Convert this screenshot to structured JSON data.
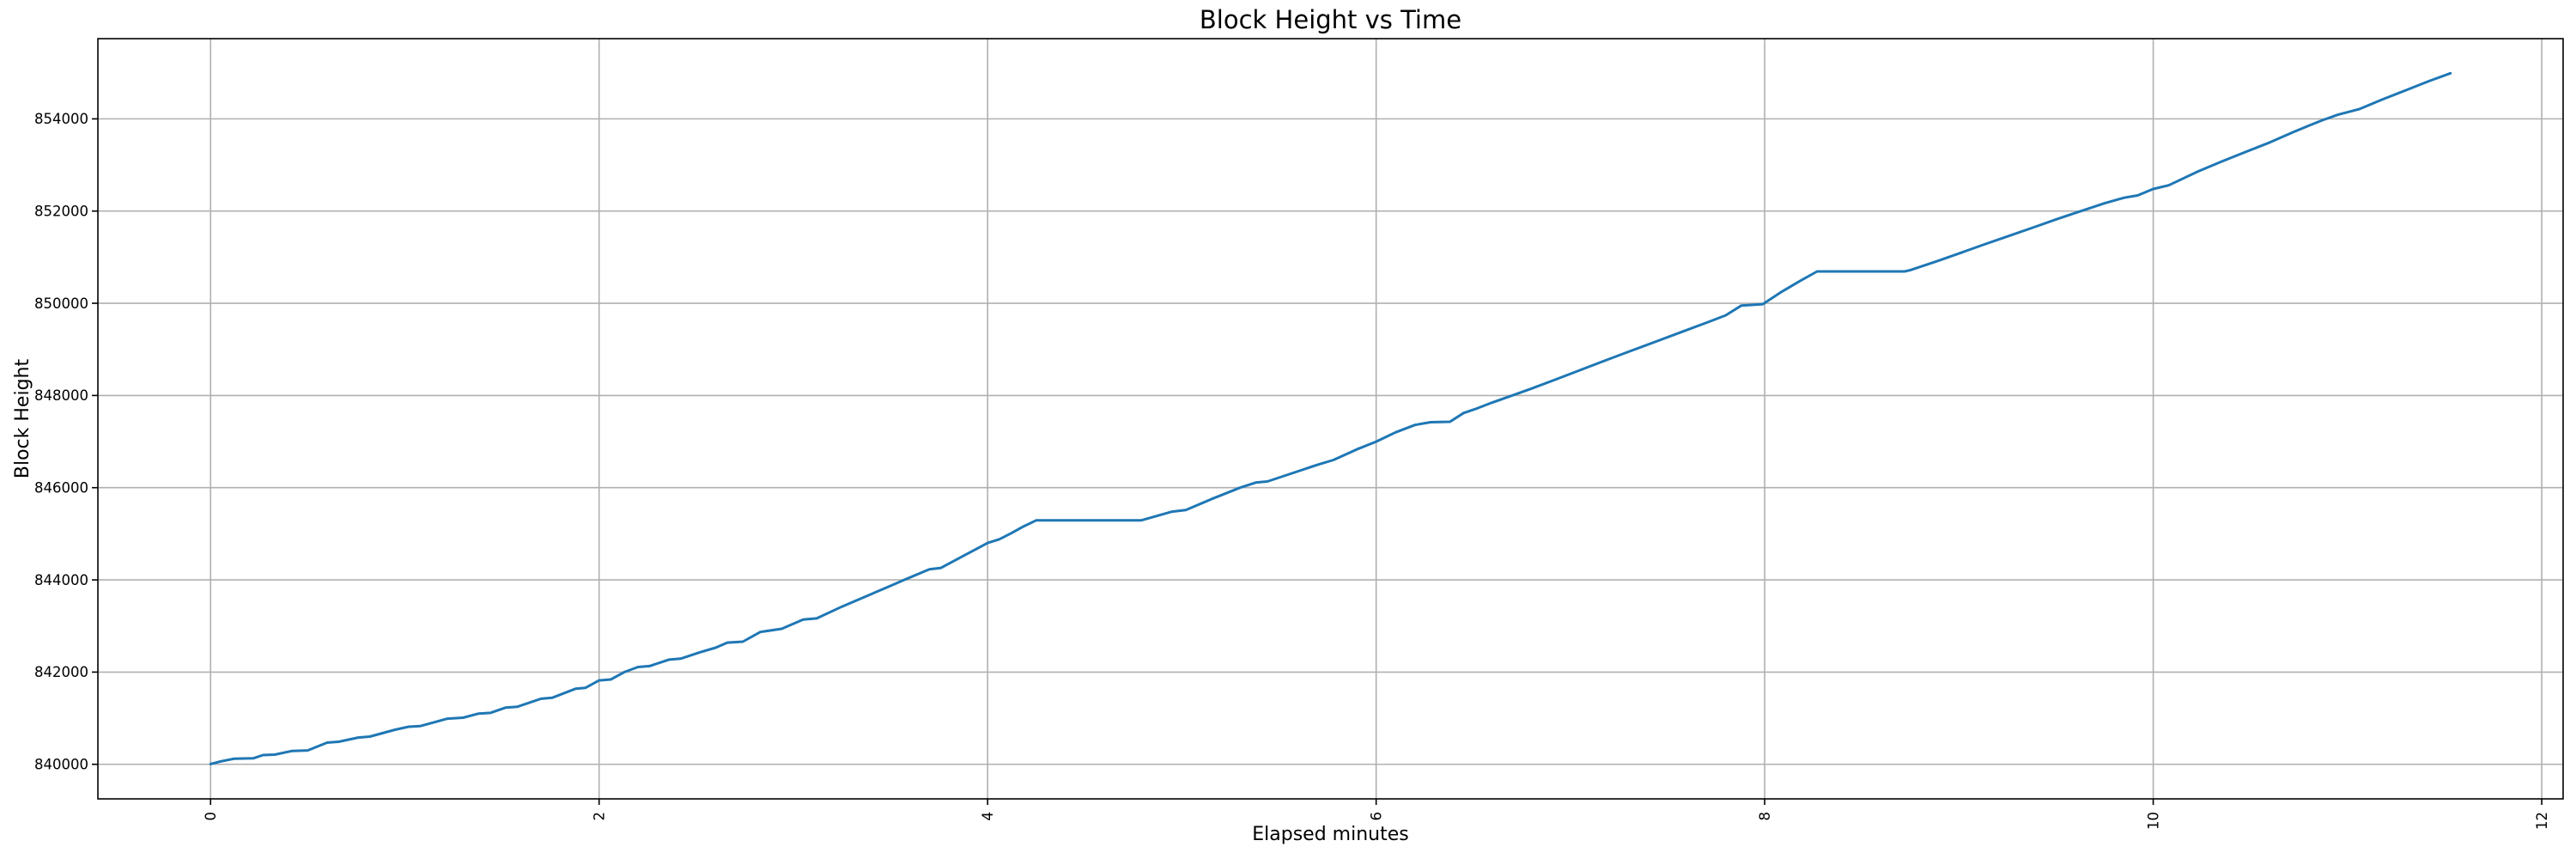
{
  "chart_data": {
    "type": "line",
    "title": "Block Height vs Time",
    "xlabel": "Elapsed minutes",
    "ylabel": "Block Height",
    "x_ticks": [
      0,
      2,
      4,
      6,
      8,
      10,
      12
    ],
    "y_ticks": [
      840000,
      842000,
      844000,
      846000,
      848000,
      850000,
      852000,
      854000
    ],
    "xlim": [
      -0.58,
      12.11
    ],
    "ylim": [
      839250,
      855740
    ],
    "grid": true,
    "legend_position": "none",
    "x_tick_rotation_deg": 90,
    "colors": {
      "line": "#1f77b4",
      "grid": "#b0b0b0",
      "spine": "#000000",
      "text": "#000000",
      "background": "#ffffff"
    },
    "series": [
      {
        "name": "Block Height",
        "points": [
          [
            0.0,
            840005
          ],
          [
            0.05,
            840060
          ],
          [
            0.12,
            840120
          ],
          [
            0.22,
            840130
          ],
          [
            0.27,
            840200
          ],
          [
            0.33,
            840210
          ],
          [
            0.42,
            840290
          ],
          [
            0.5,
            840300
          ],
          [
            0.6,
            840470
          ],
          [
            0.66,
            840490
          ],
          [
            0.76,
            840580
          ],
          [
            0.82,
            840600
          ],
          [
            0.95,
            840750
          ],
          [
            1.02,
            840815
          ],
          [
            1.08,
            840830
          ],
          [
            1.22,
            840990
          ],
          [
            1.3,
            841010
          ],
          [
            1.38,
            841100
          ],
          [
            1.44,
            841115
          ],
          [
            1.52,
            841230
          ],
          [
            1.58,
            841250
          ],
          [
            1.7,
            841420
          ],
          [
            1.76,
            841445
          ],
          [
            1.88,
            841640
          ],
          [
            1.93,
            841660
          ],
          [
            2.0,
            841820
          ],
          [
            2.06,
            841840
          ],
          [
            2.13,
            842000
          ],
          [
            2.2,
            842110
          ],
          [
            2.26,
            842130
          ],
          [
            2.36,
            842270
          ],
          [
            2.42,
            842290
          ],
          [
            2.52,
            842430
          ],
          [
            2.6,
            842530
          ],
          [
            2.66,
            842640
          ],
          [
            2.74,
            842660
          ],
          [
            2.83,
            842870
          ],
          [
            2.94,
            842940
          ],
          [
            3.05,
            843140
          ],
          [
            3.12,
            843165
          ],
          [
            3.25,
            843420
          ],
          [
            3.4,
            843690
          ],
          [
            3.5,
            843870
          ],
          [
            3.57,
            844000
          ],
          [
            3.7,
            844230
          ],
          [
            3.76,
            844260
          ],
          [
            3.88,
            844530
          ],
          [
            4.0,
            844800
          ],
          [
            4.06,
            844880
          ],
          [
            4.12,
            845010
          ],
          [
            4.18,
            845150
          ],
          [
            4.25,
            845290
          ],
          [
            4.79,
            845290
          ],
          [
            4.95,
            845480
          ],
          [
            5.02,
            845515
          ],
          [
            5.15,
            845750
          ],
          [
            5.3,
            846000
          ],
          [
            5.38,
            846110
          ],
          [
            5.44,
            846135
          ],
          [
            5.58,
            846330
          ],
          [
            5.7,
            846500
          ],
          [
            5.78,
            846600
          ],
          [
            5.9,
            846830
          ],
          [
            6.0,
            847000
          ],
          [
            6.1,
            847200
          ],
          [
            6.2,
            847360
          ],
          [
            6.28,
            847420
          ],
          [
            6.38,
            847430
          ],
          [
            6.45,
            847620
          ],
          [
            6.52,
            847720
          ],
          [
            6.6,
            847850
          ],
          [
            6.72,
            848030
          ],
          [
            6.8,
            848150
          ],
          [
            6.92,
            848340
          ],
          [
            7.05,
            848550
          ],
          [
            7.18,
            848760
          ],
          [
            7.3,
            848950
          ],
          [
            7.44,
            849170
          ],
          [
            7.58,
            849390
          ],
          [
            7.72,
            849610
          ],
          [
            7.8,
            849740
          ],
          [
            7.88,
            849950
          ],
          [
            7.99,
            849980
          ],
          [
            8.08,
            850230
          ],
          [
            8.18,
            850480
          ],
          [
            8.27,
            850690
          ],
          [
            8.72,
            850690
          ],
          [
            8.75,
            850720
          ],
          [
            8.9,
            850930
          ],
          [
            9.0,
            851080
          ],
          [
            9.12,
            851260
          ],
          [
            9.25,
            851450
          ],
          [
            9.38,
            851640
          ],
          [
            9.5,
            851820
          ],
          [
            9.62,
            851990
          ],
          [
            9.75,
            852170
          ],
          [
            9.85,
            852290
          ],
          [
            9.92,
            852340
          ],
          [
            10.0,
            852480
          ],
          [
            10.08,
            852560
          ],
          [
            10.15,
            852700
          ],
          [
            10.23,
            852860
          ],
          [
            10.35,
            853070
          ],
          [
            10.48,
            853290
          ],
          [
            10.6,
            853490
          ],
          [
            10.72,
            853710
          ],
          [
            10.8,
            853850
          ],
          [
            10.87,
            853970
          ],
          [
            10.95,
            854090
          ],
          [
            11.06,
            854210
          ],
          [
            11.18,
            854420
          ],
          [
            11.3,
            854620
          ],
          [
            11.42,
            854820
          ],
          [
            11.53,
            854990
          ]
        ]
      }
    ]
  }
}
